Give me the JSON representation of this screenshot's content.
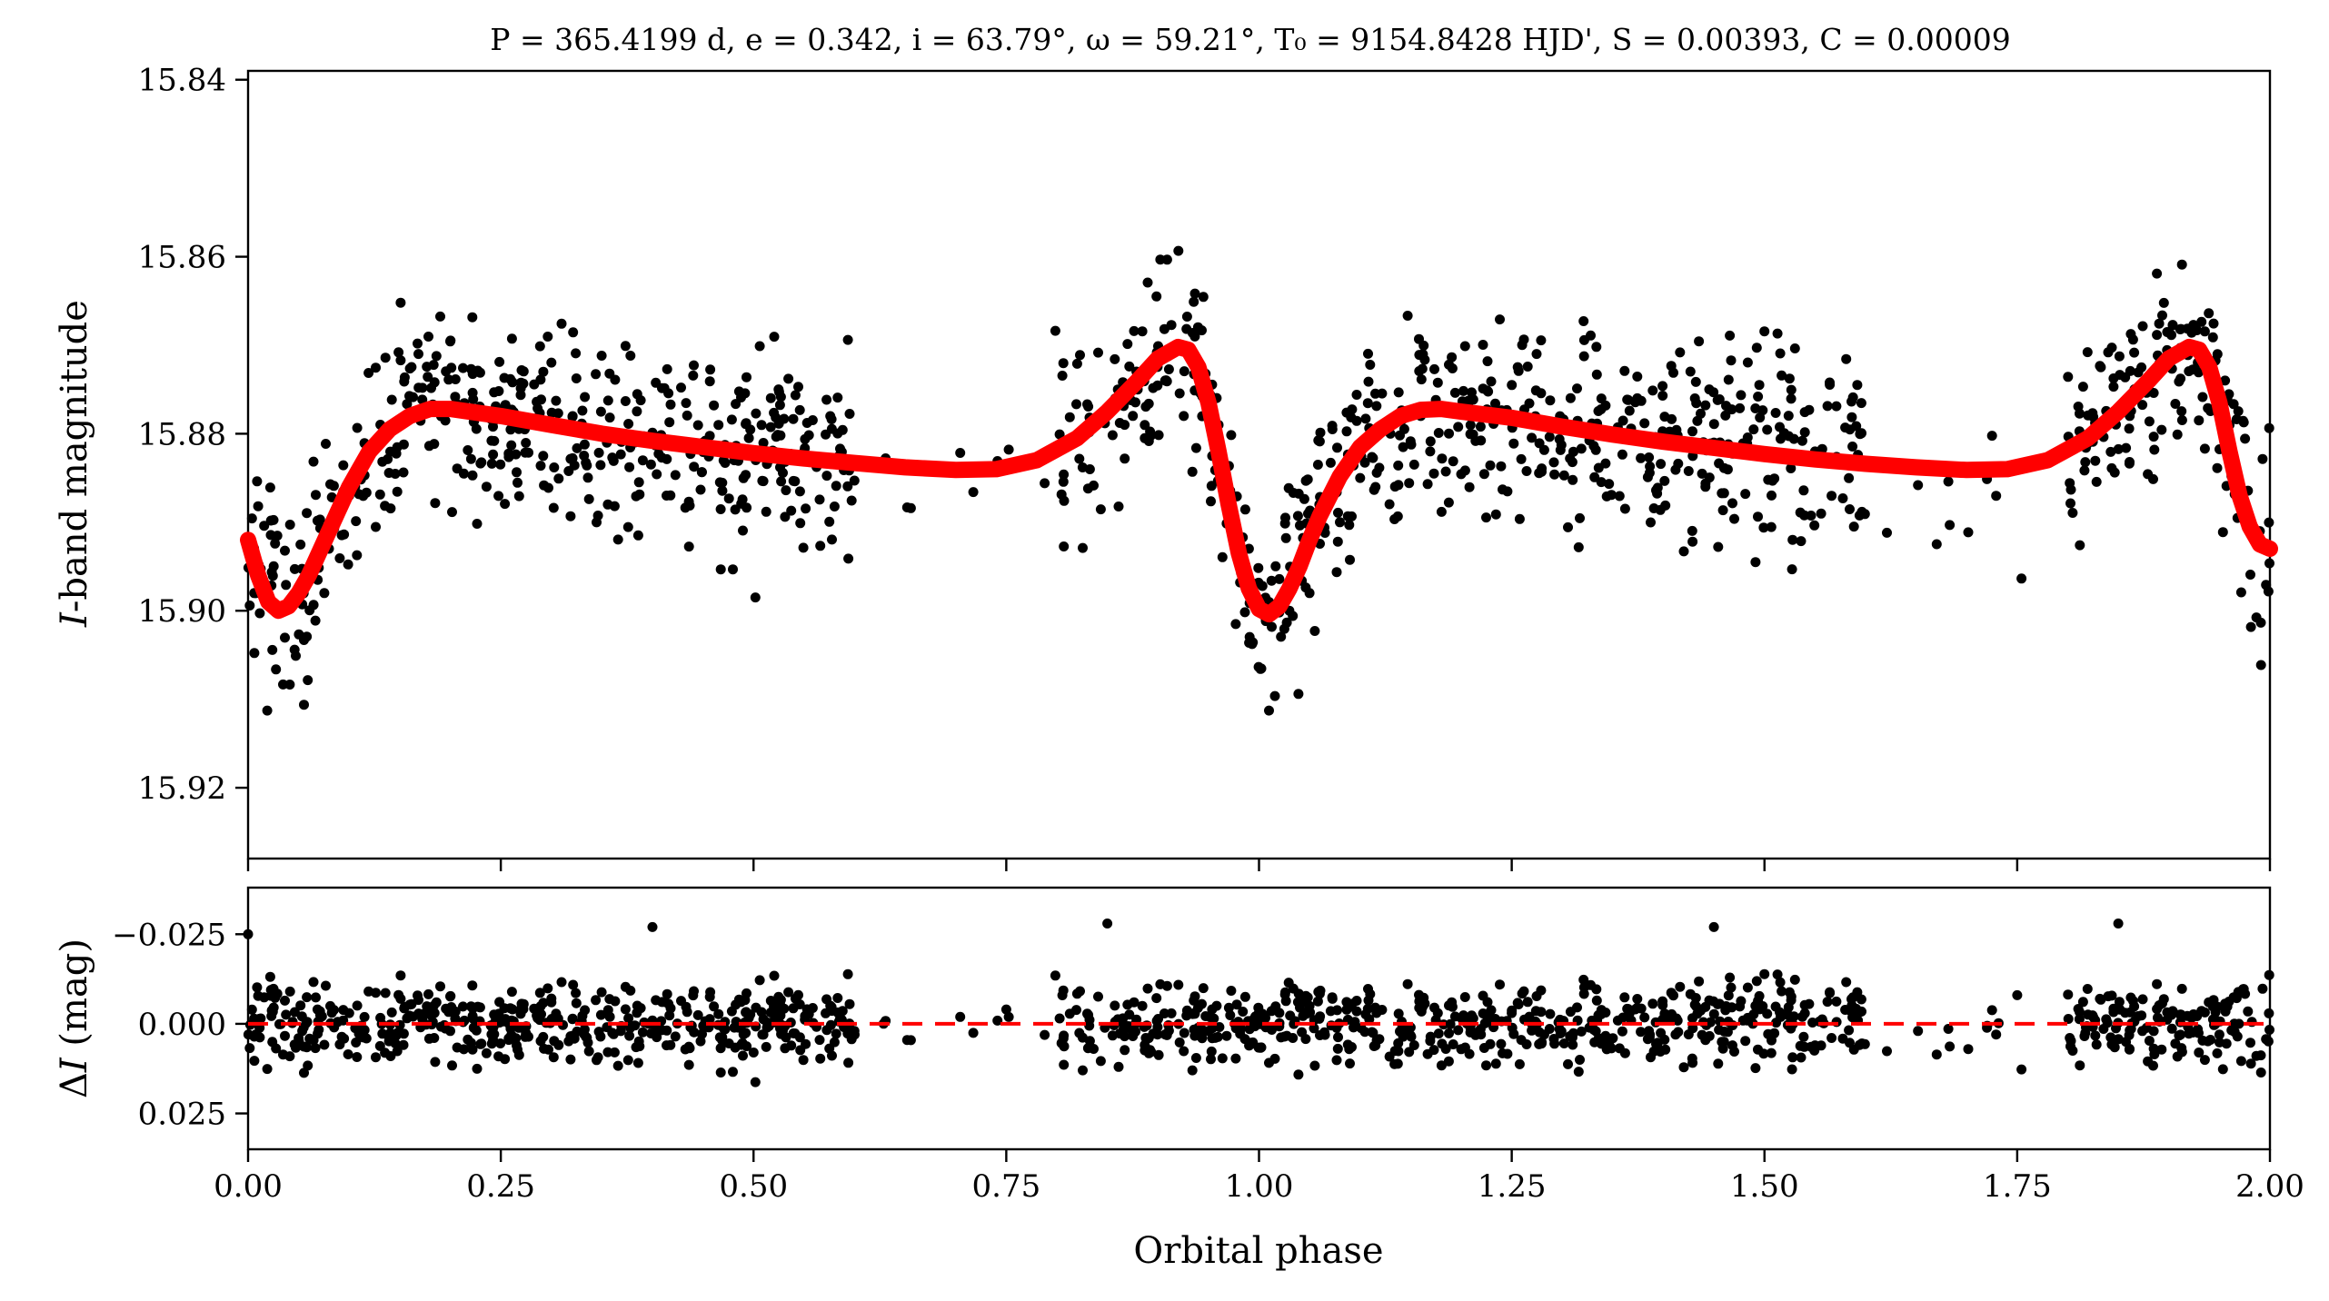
{
  "chart_data": [
    {
      "type": "scatter",
      "panel": "top",
      "title": "P = 365.4199 d, e = 0.342, i = 63.79°, ω = 59.21°, T₀ = 9154.8428 HJD', S = 0.00393, C = 0.00009",
      "xlabel": "",
      "ylabel": "I-band magnitude",
      "ylabel_italic_part": "I",
      "ylabel_rest": "-band magnitude",
      "xlim": [
        0.0,
        2.0
      ],
      "ylim": [
        15.928,
        15.839
      ],
      "y_inverted": true,
      "yticks": [
        15.84,
        15.86,
        15.88,
        15.9,
        15.92
      ],
      "ytick_labels": [
        "15.84",
        "15.86",
        "15.88",
        "15.90",
        "15.92"
      ],
      "xticks": [
        0.0,
        0.25,
        0.5,
        0.75,
        1.0,
        1.25,
        1.5,
        1.75,
        2.0
      ],
      "grid": false,
      "series": [
        {
          "name": "observations",
          "kind": "points",
          "color": "#000000",
          "description": "phased I-band photometry, scatter of ~±0.01 mag around the model, gaps near phase 0.60–0.80 and 1.60–1.80",
          "x": [
            0.01,
            0.03,
            0.05,
            0.08,
            0.1,
            0.13,
            0.16,
            0.2,
            0.25,
            0.3,
            0.35,
            0.4,
            0.45,
            0.5,
            0.55,
            0.58,
            0.7,
            0.75,
            0.8,
            0.85,
            0.88,
            0.9,
            0.93,
            0.96,
            0.99,
            1.01,
            1.03,
            1.05,
            1.08,
            1.1,
            1.13,
            1.16,
            1.2,
            1.25,
            1.3,
            1.35,
            1.4,
            1.45,
            1.5,
            1.55,
            1.58,
            1.7,
            1.75,
            1.8,
            1.85,
            1.88,
            1.9,
            1.93,
            1.96,
            1.99
          ],
          "y": [
            15.896,
            15.9,
            15.899,
            15.893,
            15.887,
            15.881,
            15.878,
            15.877,
            15.878,
            15.879,
            15.88,
            15.881,
            15.881,
            15.882,
            15.882,
            15.883,
            15.884,
            15.884,
            15.882,
            15.878,
            15.875,
            15.872,
            15.871,
            15.879,
            15.893,
            15.899,
            15.9,
            15.898,
            15.89,
            15.885,
            15.88,
            15.878,
            15.877,
            15.878,
            15.879,
            15.88,
            15.881,
            15.881,
            15.882,
            15.882,
            15.883,
            15.884,
            15.884,
            15.882,
            15.878,
            15.875,
            15.872,
            15.871,
            15.879,
            15.891
          ]
        },
        {
          "name": "model",
          "kind": "line",
          "color": "#ff0000",
          "x": [
            0.0,
            0.01,
            0.02,
            0.03,
            0.04,
            0.05,
            0.06,
            0.08,
            0.1,
            0.12,
            0.14,
            0.16,
            0.18,
            0.2,
            0.25,
            0.3,
            0.35,
            0.4,
            0.45,
            0.5,
            0.55,
            0.6,
            0.65,
            0.7,
            0.74,
            0.78,
            0.82,
            0.85,
            0.88,
            0.9,
            0.92,
            0.93,
            0.94,
            0.95,
            0.96,
            0.97,
            0.98,
            0.99,
            1.0,
            1.01,
            1.02,
            1.03,
            1.04,
            1.05,
            1.06,
            1.08,
            1.1,
            1.12,
            1.14,
            1.16,
            1.18,
            1.2,
            1.25,
            1.3,
            1.35,
            1.4,
            1.45,
            1.5,
            1.55,
            1.6,
            1.65,
            1.7,
            1.74,
            1.78,
            1.82,
            1.85,
            1.88,
            1.9,
            1.92,
            1.93,
            1.94,
            1.95,
            1.96,
            1.97,
            1.98,
            1.99,
            2.0
          ],
          "y": [
            15.892,
            15.896,
            15.899,
            15.9,
            15.8995,
            15.898,
            15.896,
            15.891,
            15.886,
            15.882,
            15.8795,
            15.878,
            15.8772,
            15.8772,
            15.878,
            15.879,
            15.88,
            15.8808,
            15.8815,
            15.8822,
            15.8828,
            15.8833,
            15.8838,
            15.8841,
            15.884,
            15.883,
            15.8805,
            15.8775,
            15.874,
            15.8715,
            15.8702,
            15.8705,
            15.8725,
            15.8765,
            15.882,
            15.888,
            15.8935,
            15.8975,
            15.8998,
            15.9004,
            15.8995,
            15.8975,
            15.895,
            15.892,
            15.8893,
            15.8848,
            15.8815,
            15.8795,
            15.878,
            15.8773,
            15.8772,
            15.8775,
            15.8782,
            15.8792,
            15.8801,
            15.8809,
            15.8816,
            15.8823,
            15.8829,
            15.8834,
            15.8838,
            15.8841,
            15.884,
            15.883,
            15.8805,
            15.8775,
            15.874,
            15.8715,
            15.8702,
            15.8705,
            15.8725,
            15.8765,
            15.882,
            15.887,
            15.8905,
            15.8925,
            15.893
          ]
        }
      ]
    },
    {
      "type": "scatter",
      "panel": "bottom",
      "xlabel": "Orbital phase",
      "ylabel": "ΔI (mag)",
      "ylabel_delta": "Δ",
      "ylabel_italic_part": "I",
      "ylabel_rest": " (mag)",
      "xlim": [
        0.0,
        2.0
      ],
      "ylim": [
        0.035,
        -0.038
      ],
      "y_inverted": true,
      "yticks": [
        -0.025,
        0.0,
        0.025
      ],
      "ytick_labels": [
        "−0.025",
        "0.000",
        "0.025"
      ],
      "xticks": [
        0.0,
        0.25,
        0.5,
        0.75,
        1.0,
        1.25,
        1.5,
        1.75,
        2.0
      ],
      "xtick_labels": [
        "0.00",
        "0.25",
        "0.50",
        "0.75",
        "1.00",
        "1.25",
        "1.50",
        "1.75",
        "2.00"
      ],
      "grid": false,
      "series": [
        {
          "name": "residuals",
          "kind": "points",
          "color": "#000000",
          "description": "residuals scattered within about ±0.015 mag, outliers to ±0.027 mag",
          "x": [
            0.0,
            0.05,
            0.1,
            0.2,
            0.3,
            0.4,
            0.5,
            0.6,
            0.75,
            0.85,
            0.95,
            1.05,
            1.15,
            1.25,
            1.35,
            1.45,
            1.55,
            1.75,
            1.85,
            1.95
          ],
          "y": [
            -0.025,
            0.004,
            -0.003,
            0.002,
            -0.006,
            -0.027,
            0.008,
            0.003,
            -0.004,
            -0.028,
            0.002,
            -0.005,
            0.001,
            -0.003,
            0.004,
            -0.027,
            0.006,
            -0.008,
            -0.028,
            0.003
          ]
        },
        {
          "name": "zero-line",
          "kind": "dashed-line",
          "color": "#ff0000",
          "y_value": 0.0
        }
      ]
    }
  ]
}
